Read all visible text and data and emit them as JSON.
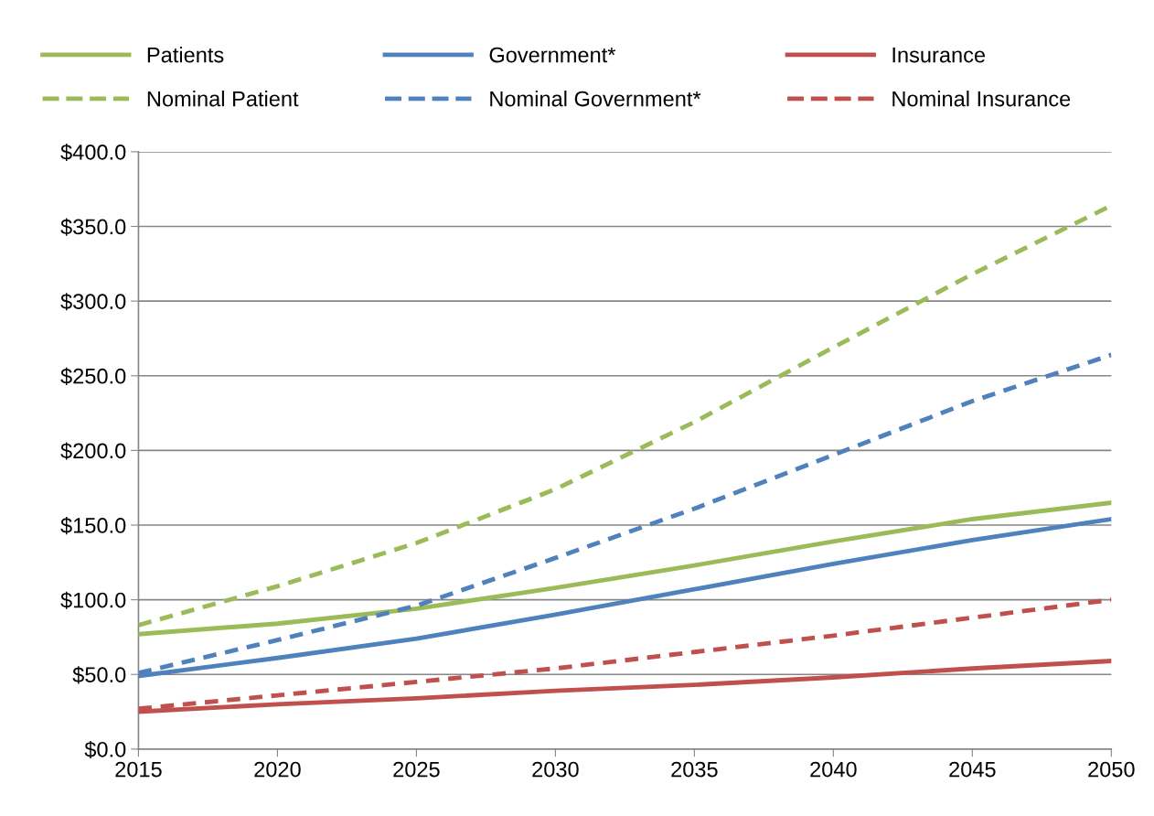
{
  "chart_data": {
    "type": "line",
    "x": [
      2015,
      2020,
      2025,
      2030,
      2035,
      2040,
      2045,
      2050
    ],
    "series": [
      {
        "name": "Patients",
        "color": "#9bbb59",
        "line_style": "solid",
        "values": [
          77,
          84,
          94,
          108,
          123,
          139,
          154,
          165
        ]
      },
      {
        "name": "Government*",
        "color": "#4f81bd",
        "line_style": "solid",
        "values": [
          49,
          61,
          74,
          90,
          107,
          124,
          140,
          154
        ]
      },
      {
        "name": "Insurance",
        "color": "#c0504d",
        "line_style": "solid",
        "values": [
          25,
          30,
          34,
          39,
          43,
          48,
          54,
          59
        ]
      },
      {
        "name": "Nominal Patient",
        "color": "#9bbb59",
        "line_style": "dashed",
        "values": [
          83,
          109,
          138,
          174,
          219,
          269,
          318,
          364
        ]
      },
      {
        "name": "Nominal Government*",
        "color": "#4f81bd",
        "line_style": "dashed",
        "values": [
          51,
          73,
          96,
          128,
          161,
          197,
          233,
          264
        ]
      },
      {
        "name": "Nominal Insurance",
        "color": "#c0504d",
        "line_style": "dashed",
        "values": [
          27,
          36,
          45,
          54,
          65,
          76,
          88,
          100
        ]
      }
    ],
    "xlim": [
      2015,
      2050
    ],
    "xticks": [
      2015,
      2020,
      2025,
      2030,
      2035,
      2040,
      2045,
      2050
    ],
    "ylim": [
      0,
      400
    ],
    "yticks": [
      {
        "value": 0,
        "label": "$0.0"
      },
      {
        "value": 50,
        "label": "$50.0"
      },
      {
        "value": 100,
        "label": "$100.0"
      },
      {
        "value": 150,
        "label": "$150.0"
      },
      {
        "value": 200,
        "label": "$200.0"
      },
      {
        "value": 250,
        "label": "$250.0"
      },
      {
        "value": 300,
        "label": "$300.0"
      },
      {
        "value": 350,
        "label": "$350.0"
      },
      {
        "value": 400,
        "label": "$400.0"
      }
    ],
    "grid": "y",
    "legend": "top",
    "marker": "none"
  }
}
